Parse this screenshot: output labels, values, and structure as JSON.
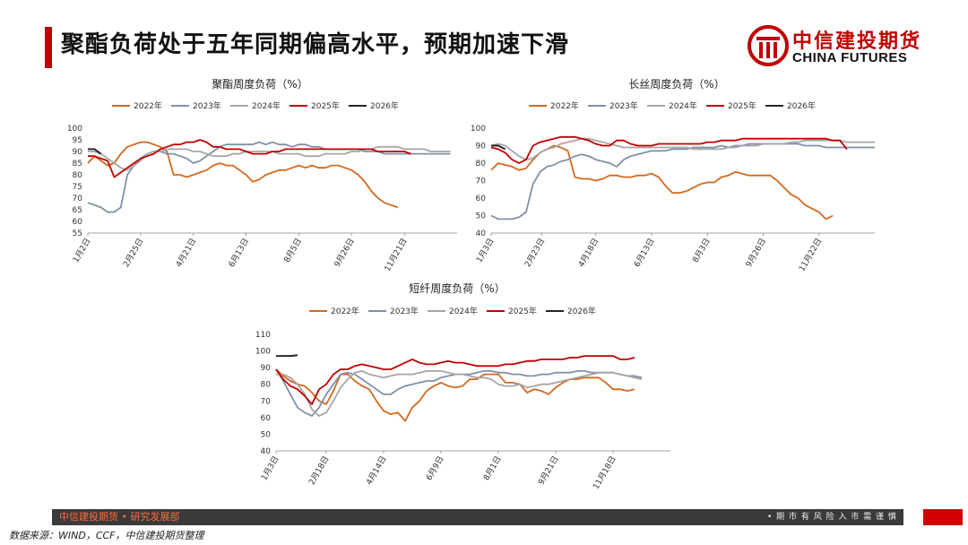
{
  "page": {
    "title": "聚酯负荷处于五年同期偏高水平，预期加速下滑",
    "logo_cn": "中信建投期货",
    "logo_en": "CHINA FUTURES",
    "footer_left": "中信建投期货 • 研究发展部",
    "footer_right": "• 期 市 有 风 险    入 市 需 谨 慎",
    "source": "数据来源：WIND，CCF，中信建投期货整理"
  },
  "colors": {
    "brand": "#c00000",
    "s2022": "#d4691e",
    "s2023": "#7f90aa",
    "s2024": "#a6a6a6",
    "s2025": "#c00000",
    "s2026": "#262626"
  },
  "chart_data": [
    {
      "id": "polyester",
      "type": "line",
      "title": "聚酯周度负荷（%）",
      "xlabel": "",
      "ylabel": "",
      "ylim": [
        55,
        100
      ],
      "yticks": [
        55,
        60,
        65,
        70,
        75,
        80,
        85,
        90,
        95,
        100
      ],
      "xticks": [
        {
          "w": 0,
          "label": "1月2日"
        },
        {
          "w": 8,
          "label": "2月25日"
        },
        {
          "w": 16,
          "label": "4月21日"
        },
        {
          "w": 24,
          "label": "6月13日"
        },
        {
          "w": 32,
          "label": "8月5日"
        },
        {
          "w": 40,
          "label": "9月26日"
        },
        {
          "w": 48,
          "label": "11月21日"
        }
      ],
      "xmax": 56,
      "legend": [
        "2022年",
        "2023年",
        "2024年",
        "2025年",
        "2026年"
      ],
      "series": [
        {
          "name": "2022年",
          "values": [
            85,
            88,
            86,
            84,
            85,
            89,
            92,
            93,
            94,
            94,
            93,
            92,
            90,
            80,
            80,
            79,
            80,
            81,
            82,
            84,
            85,
            84,
            84,
            82,
            80,
            77,
            78,
            80,
            81,
            82,
            82,
            83,
            84,
            83,
            84,
            83,
            83,
            84,
            84,
            83,
            82,
            80,
            77,
            73,
            70,
            68,
            67,
            66
          ]
        },
        {
          "name": "2023年",
          "values": [
            68,
            67,
            66,
            64,
            64,
            66,
            80,
            84,
            87,
            89,
            90,
            90,
            89,
            89,
            88,
            87,
            85,
            86,
            88,
            90,
            92,
            93,
            93,
            93,
            93,
            93,
            94,
            93,
            94,
            93,
            93,
            92,
            93,
            93,
            92,
            92,
            91,
            91,
            91,
            91,
            91,
            91,
            90,
            90,
            90,
            89,
            89,
            89,
            89,
            89,
            89,
            89,
            89,
            89,
            89,
            89
          ]
        },
        {
          "name": "2024年",
          "values": [
            90,
            90,
            89,
            87,
            85,
            83,
            82,
            84,
            86,
            89,
            90,
            90,
            91,
            91,
            91,
            91,
            90,
            90,
            89,
            88,
            88,
            88,
            89,
            89,
            90,
            90,
            90,
            90,
            90,
            89,
            89,
            89,
            89,
            88,
            88,
            88,
            89,
            89,
            89,
            89,
            90,
            90,
            91,
            91,
            92,
            92,
            92,
            92,
            91,
            91,
            91,
            91,
            90,
            90,
            90,
            90
          ]
        },
        {
          "name": "2025年",
          "values": [
            88,
            88,
            87,
            86,
            79,
            81,
            83,
            85,
            87,
            88,
            89,
            91,
            92,
            93,
            93,
            94,
            94,
            95,
            94,
            92,
            92,
            91,
            91,
            91,
            90,
            89,
            89,
            89,
            90,
            90,
            91,
            91,
            91,
            91,
            91,
            91,
            91,
            91,
            91,
            91,
            91,
            91,
            91,
            91,
            90,
            90,
            90,
            90,
            90,
            89
          ]
        },
        {
          "name": "2026年",
          "values": [
            91,
            91,
            89
          ]
        }
      ]
    },
    {
      "id": "filament",
      "type": "line",
      "title": "长丝周度负荷（%）",
      "xlabel": "",
      "ylabel": "",
      "ylim": [
        40,
        100
      ],
      "yticks": [
        40,
        50,
        60,
        70,
        80,
        90,
        100
      ],
      "xticks": [
        {
          "w": 0,
          "label": "1月3日"
        },
        {
          "w": 7.3,
          "label": "2月23日"
        },
        {
          "w": 15,
          "label": "4月18日"
        },
        {
          "w": 23,
          "label": "6月13日"
        },
        {
          "w": 31,
          "label": "8月3日"
        },
        {
          "w": 39,
          "label": "9月26日"
        },
        {
          "w": 47,
          "label": "11月22日"
        }
      ],
      "xmax": 55,
      "legend": [
        "2022年",
        "2023年",
        "2024年",
        "2025年",
        "2026年"
      ],
      "series": [
        {
          "name": "2022年",
          "values": [
            76,
            80,
            79,
            78,
            76,
            77,
            82,
            86,
            88,
            90,
            89,
            87,
            72,
            71,
            71,
            70,
            71,
            73,
            73,
            72,
            72,
            73,
            73,
            74,
            72,
            67,
            63,
            63,
            64,
            66,
            68,
            69,
            69,
            72,
            73,
            75,
            74,
            73,
            73,
            73,
            73,
            70,
            66,
            62,
            60,
            56,
            54,
            52,
            48,
            50
          ]
        },
        {
          "name": "2023年",
          "values": [
            50,
            48,
            48,
            48,
            49,
            52,
            68,
            75,
            78,
            79,
            81,
            82,
            84,
            85,
            84,
            82,
            81,
            80,
            78,
            82,
            84,
            85,
            86,
            87,
            87,
            87,
            88,
            88,
            88,
            89,
            89,
            89,
            89,
            90,
            89,
            90,
            90,
            91,
            91,
            91,
            91,
            91,
            91,
            91,
            91,
            90,
            90,
            90,
            89,
            89,
            89,
            89,
            89,
            89,
            89,
            89
          ]
        },
        {
          "name": "2024年",
          "values": [
            90,
            91,
            90,
            87,
            84,
            82,
            83,
            86,
            88,
            89,
            91,
            92,
            93,
            94,
            94,
            93,
            92,
            91,
            90,
            89,
            89,
            89,
            89,
            89,
            89,
            89,
            89,
            89,
            89,
            88,
            88,
            88,
            88,
            88,
            89,
            89,
            90,
            90,
            90,
            91,
            91,
            91,
            91,
            92,
            92,
            93,
            93,
            93,
            93,
            93,
            93,
            92,
            92,
            92,
            92,
            92
          ]
        },
        {
          "name": "2025年",
          "values": [
            89,
            88,
            86,
            82,
            80,
            82,
            90,
            92,
            93,
            94,
            95,
            95,
            95,
            94,
            93,
            91,
            90,
            90,
            93,
            93,
            91,
            90,
            90,
            90,
            91,
            91,
            91,
            91,
            91,
            91,
            91,
            92,
            92,
            93,
            93,
            93,
            94,
            94,
            94,
            94,
            94,
            94,
            94,
            94,
            94,
            94,
            94,
            94,
            94,
            93,
            93,
            88
          ]
        },
        {
          "name": "2026年",
          "values": [
            90,
            90,
            88
          ]
        }
      ]
    },
    {
      "id": "staple",
      "type": "line",
      "title": "短纤周度负荷（%）",
      "xlabel": "",
      "ylabel": "",
      "ylim": [
        40,
        110
      ],
      "yticks": [
        40,
        50,
        60,
        70,
        80,
        90,
        100,
        110
      ],
      "xticks": [
        {
          "w": 0,
          "label": "1月3日"
        },
        {
          "w": 7,
          "label": "2月18日"
        },
        {
          "w": 15,
          "label": "4月14日"
        },
        {
          "w": 23,
          "label": "6月9日"
        },
        {
          "w": 31,
          "label": "8月1日"
        },
        {
          "w": 39,
          "label": "9月21日"
        },
        {
          "w": 47,
          "label": "11月18日"
        }
      ],
      "xmax": 55,
      "legend": [
        "2022年",
        "2023年",
        "2024年",
        "2025年",
        "2026年"
      ],
      "series": [
        {
          "name": "2022年",
          "values": [
            89,
            85,
            82,
            80,
            79,
            75,
            70,
            68,
            76,
            86,
            86,
            82,
            79,
            77,
            70,
            64,
            62,
            63,
            58,
            66,
            70,
            76,
            79,
            81,
            79,
            78,
            79,
            83,
            83,
            86,
            86,
            86,
            81,
            81,
            80,
            75,
            77,
            76,
            74,
            78,
            81,
            83,
            83,
            84,
            84,
            84,
            81,
            77,
            77,
            76,
            77
          ]
        },
        {
          "name": "2023年",
          "values": [
            89,
            82,
            74,
            66,
            63,
            61,
            66,
            74,
            80,
            86,
            87,
            86,
            83,
            80,
            77,
            74,
            74,
            77,
            79,
            80,
            81,
            82,
            82,
            84,
            85,
            86,
            86,
            86,
            87,
            88,
            88,
            87,
            87,
            86,
            86,
            85,
            85,
            86,
            86,
            87,
            87,
            87,
            88,
            88,
            87,
            87,
            87,
            87,
            86,
            85,
            85,
            84
          ]
        },
        {
          "name": "2024年",
          "values": [
            86,
            86,
            84,
            80,
            74,
            65,
            61,
            63,
            70,
            78,
            83,
            87,
            88,
            86,
            85,
            84,
            85,
            86,
            86,
            86,
            87,
            88,
            88,
            88,
            87,
            86,
            86,
            85,
            84,
            84,
            83,
            80,
            79,
            79,
            80,
            78,
            79,
            80,
            80,
            81,
            82,
            83,
            84,
            85,
            86,
            87,
            87,
            87,
            86,
            85,
            84,
            83
          ]
        },
        {
          "name": "2025年",
          "values": [
            89,
            83,
            79,
            77,
            73,
            68,
            77,
            80,
            86,
            89,
            89,
            91,
            92,
            91,
            90,
            89,
            89,
            91,
            93,
            95,
            93,
            92,
            92,
            93,
            94,
            93,
            93,
            92,
            91,
            91,
            91,
            91,
            92,
            92,
            93,
            94,
            94,
            95,
            95,
            95,
            95,
            96,
            96,
            97,
            97,
            97,
            97,
            97,
            95,
            95,
            96
          ]
        },
        {
          "name": "2026年",
          "values": [
            97,
            97,
            97,
            97.5
          ]
        }
      ]
    }
  ]
}
